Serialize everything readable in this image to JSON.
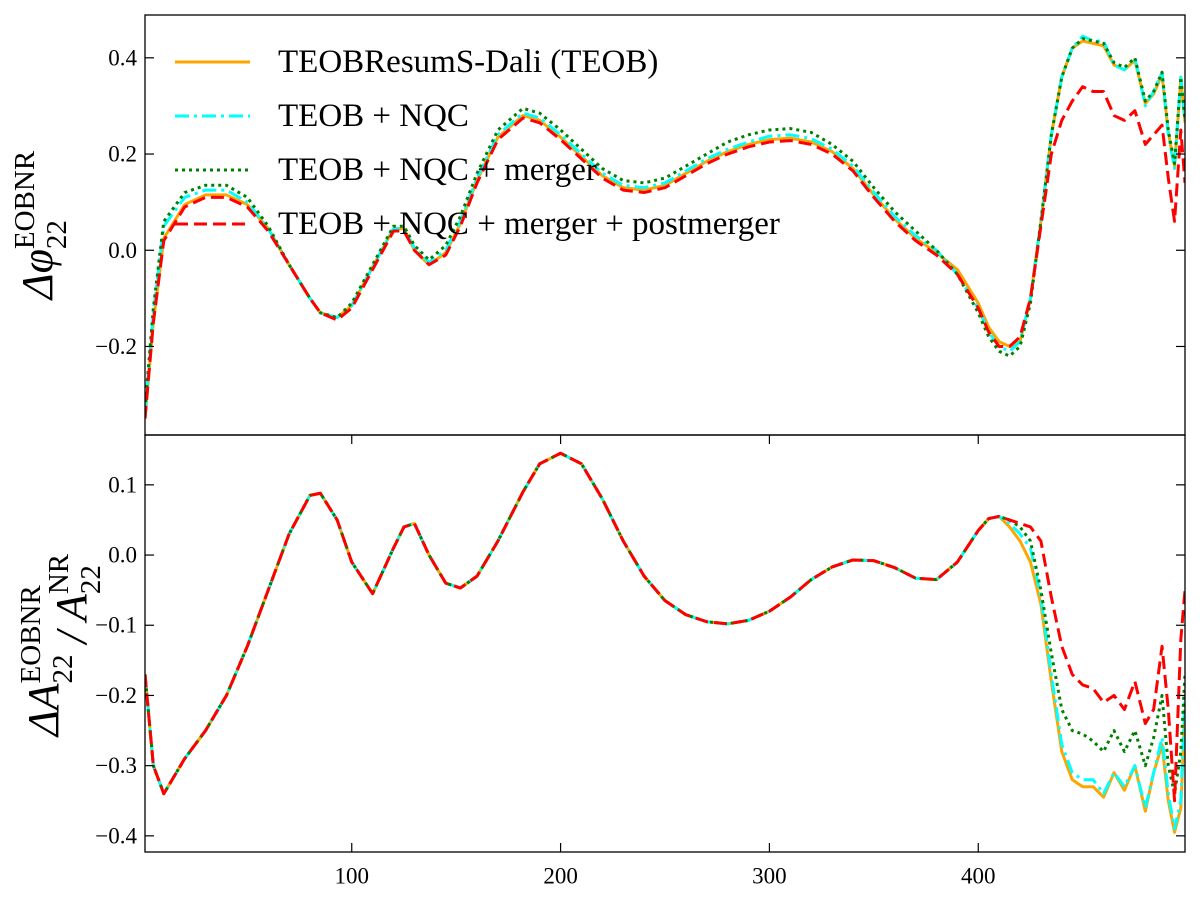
{
  "chart_data": [
    {
      "type": "line",
      "ylabel": [
        {
          "base": "Δφ",
          "sup": "EOBNR",
          "sub": "22"
        }
      ],
      "legend": "upper left",
      "x": [
        1,
        5,
        10,
        20,
        30,
        40,
        50,
        60,
        70,
        80,
        85,
        93,
        100,
        110,
        120,
        125,
        130,
        137,
        145,
        152,
        160,
        170,
        182,
        190,
        200,
        210,
        220,
        230,
        240,
        250,
        260,
        270,
        280,
        290,
        300,
        310,
        320,
        330,
        340,
        350,
        360,
        370,
        380,
        390,
        400,
        405,
        410,
        415,
        420,
        425,
        430,
        435,
        440,
        445,
        450,
        455,
        460,
        465,
        470,
        475,
        480,
        484,
        488,
        491,
        494,
        497,
        499
      ],
      "xlim": [
        1,
        499
      ],
      "ylim": [
        -0.384,
        0.489
      ],
      "yticks": [
        {
          "value": -0.2,
          "label": "−0.2"
        },
        {
          "value": 0,
          "label": "0.0"
        },
        {
          "value": 0.2,
          "label": "0.2"
        },
        {
          "value": 0.4,
          "label": "0.4"
        }
      ],
      "series": [
        {
          "name": "TEOBResumS-Dali (TEOB)",
          "color": "#ffa500",
          "linestyle": "solid",
          "values": [
            -0.35,
            -0.15,
            0.025,
            0.095,
            0.115,
            0.115,
            0.095,
            0.045,
            -0.03,
            -0.1,
            -0.13,
            -0.14,
            -0.115,
            -0.035,
            0.045,
            0.045,
            0.0,
            -0.03,
            -0.005,
            0.055,
            0.145,
            0.235,
            0.28,
            0.27,
            0.235,
            0.195,
            0.155,
            0.13,
            0.125,
            0.135,
            0.16,
            0.185,
            0.205,
            0.22,
            0.23,
            0.233,
            0.225,
            0.205,
            0.17,
            0.115,
            0.065,
            0.025,
            -0.005,
            -0.04,
            -0.11,
            -0.16,
            -0.19,
            -0.2,
            -0.19,
            -0.1,
            0.06,
            0.24,
            0.36,
            0.42,
            0.435,
            0.43,
            0.425,
            0.385,
            0.375,
            0.395,
            0.305,
            0.325,
            0.365,
            0.245,
            0.175,
            0.355,
            0.265
          ]
        },
        {
          "name": "TEOB + NQC",
          "color": "#00ffff",
          "linestyle": "dashdot",
          "values": [
            -0.34,
            -0.13,
            0.05,
            0.11,
            0.125,
            0.125,
            0.1,
            0.045,
            -0.03,
            -0.1,
            -0.13,
            -0.14,
            -0.115,
            -0.035,
            0.045,
            0.045,
            0.005,
            -0.025,
            0.0,
            0.06,
            0.15,
            0.24,
            0.285,
            0.275,
            0.24,
            0.2,
            0.16,
            0.135,
            0.13,
            0.14,
            0.165,
            0.19,
            0.21,
            0.225,
            0.237,
            0.24,
            0.232,
            0.21,
            0.175,
            0.12,
            0.07,
            0.03,
            0.0,
            -0.05,
            -0.12,
            -0.17,
            -0.2,
            -0.21,
            -0.19,
            -0.1,
            0.06,
            0.24,
            0.36,
            0.42,
            0.445,
            0.435,
            0.435,
            0.385,
            0.375,
            0.4,
            0.3,
            0.33,
            0.37,
            0.24,
            0.17,
            0.36,
            0.27
          ]
        },
        {
          "name": "TEOB + NQC + merger",
          "color": "#008000",
          "linestyle": "dotted",
          "values": [
            -0.33,
            -0.12,
            0.06,
            0.12,
            0.135,
            0.135,
            0.11,
            0.05,
            -0.03,
            -0.1,
            -0.13,
            -0.14,
            -0.11,
            -0.03,
            0.05,
            0.05,
            0.01,
            -0.02,
            0.01,
            0.07,
            0.16,
            0.25,
            0.295,
            0.285,
            0.25,
            0.21,
            0.17,
            0.145,
            0.14,
            0.15,
            0.175,
            0.2,
            0.225,
            0.24,
            0.25,
            0.253,
            0.245,
            0.22,
            0.185,
            0.13,
            0.08,
            0.04,
            0.0,
            -0.05,
            -0.13,
            -0.18,
            -0.21,
            -0.22,
            -0.2,
            -0.11,
            0.06,
            0.24,
            0.36,
            0.42,
            0.44,
            0.435,
            0.43,
            0.39,
            0.38,
            0.4,
            0.31,
            0.33,
            0.37,
            0.25,
            0.18,
            0.36,
            0.27
          ]
        },
        {
          "name": "TEOB + NQC + merger + postmerger",
          "color": "#ff0000",
          "linestyle": "dashed",
          "values": [
            -0.35,
            -0.15,
            0.02,
            0.09,
            0.11,
            0.11,
            0.09,
            0.04,
            -0.03,
            -0.1,
            -0.13,
            -0.145,
            -0.12,
            -0.04,
            0.04,
            0.04,
            0.0,
            -0.03,
            -0.01,
            0.05,
            0.14,
            0.23,
            0.275,
            0.265,
            0.23,
            0.19,
            0.15,
            0.125,
            0.12,
            0.13,
            0.155,
            0.18,
            0.2,
            0.215,
            0.225,
            0.228,
            0.22,
            0.2,
            0.165,
            0.11,
            0.06,
            0.02,
            -0.01,
            -0.05,
            -0.12,
            -0.17,
            -0.2,
            -0.2,
            -0.18,
            -0.1,
            0.05,
            0.2,
            0.27,
            0.31,
            0.34,
            0.33,
            0.33,
            0.28,
            0.27,
            0.29,
            0.22,
            0.24,
            0.26,
            0.15,
            0.06,
            0.25,
            0.14
          ]
        }
      ]
    },
    {
      "type": "line",
      "ylabel": [
        {
          "base": "ΔA",
          "sup": "EOBNR",
          "sub": "22"
        },
        {
          "base": " / A",
          "sup": "NR",
          "sub": "22"
        }
      ],
      "x": [
        1,
        5,
        10,
        20,
        30,
        40,
        50,
        60,
        70,
        80,
        85,
        93,
        100,
        110,
        120,
        125,
        130,
        137,
        145,
        152,
        160,
        170,
        182,
        190,
        200,
        210,
        220,
        230,
        240,
        250,
        260,
        270,
        280,
        290,
        300,
        310,
        320,
        330,
        340,
        350,
        360,
        370,
        380,
        390,
        400,
        405,
        410,
        415,
        420,
        425,
        430,
        435,
        440,
        445,
        450,
        455,
        460,
        465,
        470,
        475,
        480,
        484,
        488,
        491,
        494,
        497,
        499
      ],
      "xlim": [
        1,
        499
      ],
      "ylim": [
        -0.423,
        0.171
      ],
      "xticks": [
        100,
        200,
        300,
        400
      ],
      "yticks": [
        {
          "value": -0.4,
          "label": "−0.4"
        },
        {
          "value": -0.3,
          "label": "−0.3"
        },
        {
          "value": -0.2,
          "label": "−0.2"
        },
        {
          "value": -0.1,
          "label": "−0.1"
        },
        {
          "value": 0,
          "label": "0.0"
        },
        {
          "value": 0.1,
          "label": "0.1"
        }
      ],
      "series": [
        {
          "color": "#ffa500",
          "linestyle": "solid",
          "values": [
            -0.17,
            -0.3,
            -0.34,
            -0.29,
            -0.25,
            -0.2,
            -0.13,
            -0.05,
            0.03,
            0.085,
            0.088,
            0.05,
            -0.01,
            -0.055,
            0.01,
            0.04,
            0.045,
            0.0,
            -0.04,
            -0.047,
            -0.03,
            0.02,
            0.09,
            0.13,
            0.145,
            0.13,
            0.08,
            0.02,
            -0.03,
            -0.065,
            -0.085,
            -0.095,
            -0.098,
            -0.093,
            -0.08,
            -0.06,
            -0.035,
            -0.017,
            -0.007,
            -0.008,
            -0.018,
            -0.033,
            -0.035,
            -0.01,
            0.035,
            0.052,
            0.055,
            0.04,
            0.02,
            -0.01,
            -0.07,
            -0.18,
            -0.28,
            -0.32,
            -0.33,
            -0.33,
            -0.345,
            -0.31,
            -0.335,
            -0.3,
            -0.365,
            -0.31,
            -0.27,
            -0.35,
            -0.395,
            -0.36,
            -0.22
          ]
        },
        {
          "color": "#00ffff",
          "linestyle": "dashdot",
          "values": [
            -0.17,
            -0.3,
            -0.34,
            -0.29,
            -0.25,
            -0.2,
            -0.13,
            -0.05,
            0.03,
            0.085,
            0.088,
            0.05,
            -0.01,
            -0.055,
            0.01,
            0.04,
            0.045,
            0.0,
            -0.04,
            -0.047,
            -0.03,
            0.02,
            0.09,
            0.13,
            0.145,
            0.13,
            0.08,
            0.02,
            -0.03,
            -0.065,
            -0.085,
            -0.095,
            -0.098,
            -0.093,
            -0.08,
            -0.06,
            -0.035,
            -0.017,
            -0.007,
            -0.008,
            -0.018,
            -0.033,
            -0.035,
            -0.01,
            0.035,
            0.052,
            0.055,
            0.045,
            0.03,
            0.01,
            -0.06,
            -0.17,
            -0.27,
            -0.31,
            -0.32,
            -0.32,
            -0.34,
            -0.31,
            -0.33,
            -0.3,
            -0.36,
            -0.31,
            -0.26,
            -0.34,
            -0.39,
            -0.35,
            -0.2
          ]
        },
        {
          "color": "#008000",
          "linestyle": "dotted",
          "values": [
            -0.17,
            -0.3,
            -0.34,
            -0.29,
            -0.25,
            -0.2,
            -0.13,
            -0.05,
            0.03,
            0.085,
            0.088,
            0.05,
            -0.01,
            -0.055,
            0.01,
            0.04,
            0.045,
            0.0,
            -0.04,
            -0.047,
            -0.03,
            0.02,
            0.09,
            0.13,
            0.145,
            0.13,
            0.08,
            0.02,
            -0.03,
            -0.065,
            -0.085,
            -0.095,
            -0.098,
            -0.093,
            -0.08,
            -0.06,
            -0.035,
            -0.017,
            -0.007,
            -0.008,
            -0.018,
            -0.033,
            -0.035,
            -0.01,
            0.035,
            0.052,
            0.055,
            0.05,
            0.04,
            0.02,
            -0.05,
            -0.14,
            -0.22,
            -0.25,
            -0.255,
            -0.265,
            -0.28,
            -0.25,
            -0.28,
            -0.25,
            -0.3,
            -0.26,
            -0.2,
            -0.3,
            -0.34,
            -0.28,
            -0.17
          ]
        },
        {
          "color": "#ff0000",
          "linestyle": "dashed",
          "values": [
            -0.17,
            -0.3,
            -0.34,
            -0.29,
            -0.25,
            -0.2,
            -0.13,
            -0.05,
            0.03,
            0.085,
            0.088,
            0.05,
            -0.01,
            -0.055,
            0.01,
            0.04,
            0.045,
            0.0,
            -0.04,
            -0.047,
            -0.03,
            0.02,
            0.09,
            0.13,
            0.145,
            0.13,
            0.08,
            0.02,
            -0.03,
            -0.065,
            -0.085,
            -0.095,
            -0.098,
            -0.093,
            -0.08,
            -0.06,
            -0.035,
            -0.017,
            -0.007,
            -0.008,
            -0.018,
            -0.033,
            -0.035,
            -0.01,
            0.035,
            0.052,
            0.055,
            0.05,
            0.045,
            0.04,
            0.02,
            -0.06,
            -0.13,
            -0.17,
            -0.185,
            -0.19,
            -0.21,
            -0.2,
            -0.22,
            -0.18,
            -0.24,
            -0.22,
            -0.13,
            -0.22,
            -0.35,
            -0.12,
            -0.05
          ]
        }
      ]
    }
  ]
}
